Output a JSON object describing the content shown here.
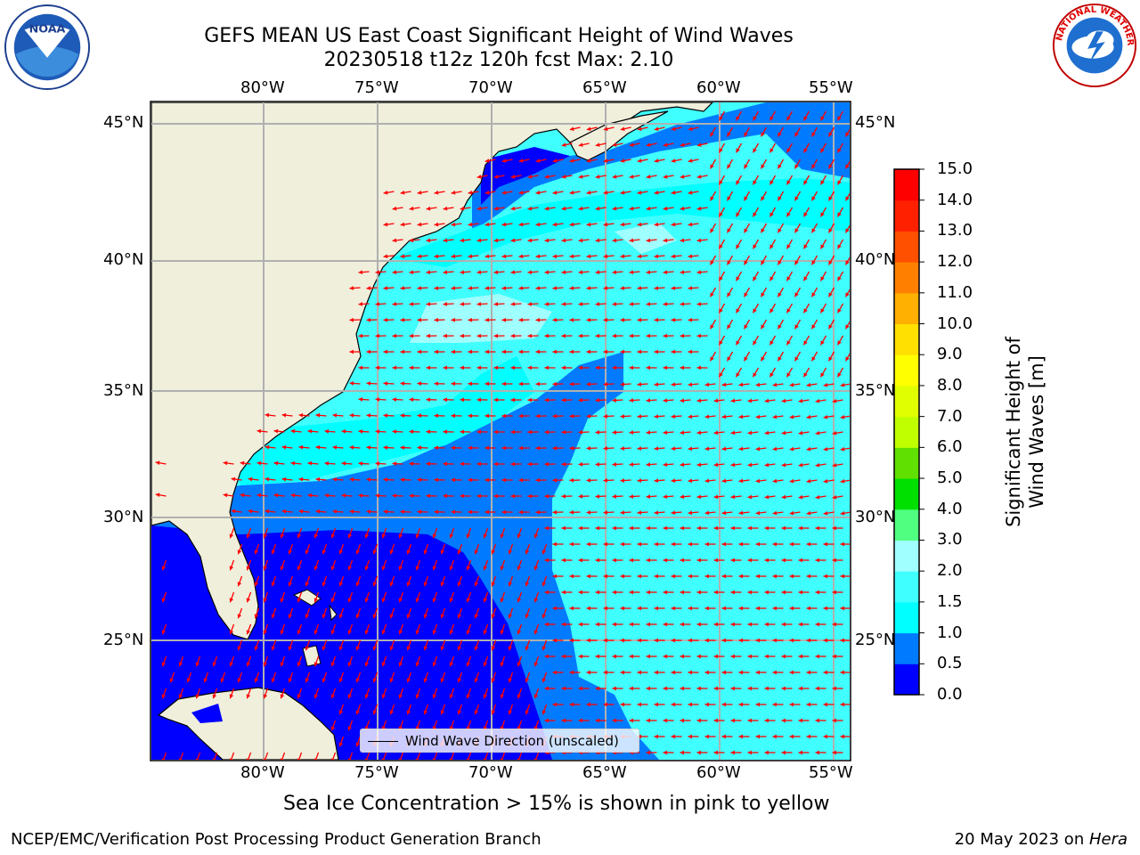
{
  "title": {
    "line1": "GEFS MEAN US East Coast Significant Height of Wind Waves",
    "line2": "20230518 t12z 120h fcst   Max: 2.10"
  },
  "map": {
    "lon_labels": [
      "80°W",
      "75°W",
      "70°W",
      "65°W",
      "60°W",
      "55°W"
    ],
    "lat_labels": [
      "45°N",
      "40°N",
      "35°N",
      "30°N",
      "25°N"
    ],
    "extent": {
      "lon_min": -85,
      "lon_max": -54.5,
      "lat_min": 20,
      "lat_max": 46
    },
    "legend": "Wind Wave Direction (unscaled)",
    "land_color": "#efefdc",
    "arrow_color": "#ff0000",
    "grid_color": "#b0b0b0"
  },
  "colorbar": {
    "title": "Significant Height of Wind Waves [m]",
    "ticks": [
      "0.0",
      "0.5",
      "1.0",
      "1.5",
      "2.0",
      "3.0",
      "4.0",
      "5.0",
      "6.0",
      "7.0",
      "8.0",
      "9.0",
      "10.0",
      "11.0",
      "12.0",
      "13.0",
      "14.0",
      "15.0"
    ],
    "colors": [
      "#0000ff",
      "#007bff",
      "#00ffff",
      "#40ffff",
      "#a0ffff",
      "#50ff80",
      "#00e000",
      "#60e000",
      "#c0ff00",
      "#e0ff00",
      "#ffff00",
      "#ffe000",
      "#ffb000",
      "#ff8000",
      "#ff5000",
      "#ff2000",
      "#ff0000"
    ]
  },
  "seaice_note": "Sea Ice Concentration > 15% is shown in pink to yellow",
  "footer": {
    "left": "NCEP/EMC/Verification Post Processing Product Generation Branch",
    "date": "20 May 2023 on ",
    "machine": "Hera"
  },
  "logos": {
    "noaa_text": "NOAA",
    "nws_text": "NATIONAL WEATHER SERVICE"
  }
}
